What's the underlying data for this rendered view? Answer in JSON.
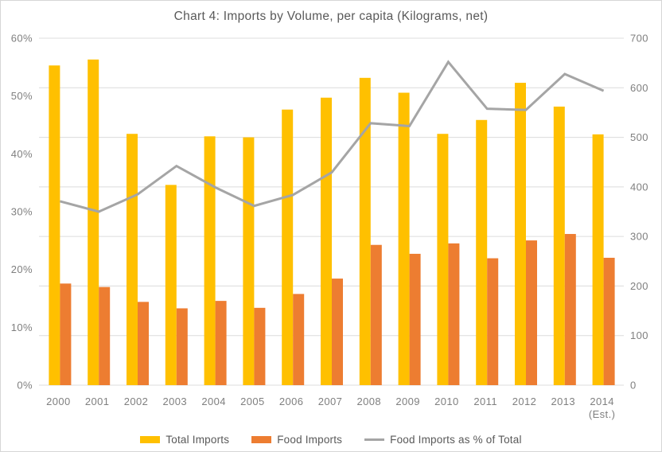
{
  "chart_data": {
    "type": "combo-bar-line",
    "title": "Chart 4: Imports by Volume, per capita (Kilograms, net)",
    "categories": [
      "2000",
      "2001",
      "2002",
      "2003",
      "2004",
      "2005",
      "2006",
      "2007",
      "2008",
      "2009",
      "2010",
      "2011",
      "2012",
      "2013",
      "2014"
    ],
    "last_category_note": "(Est.)",
    "series": [
      {
        "name": "Total Imports",
        "type": "bar",
        "axis": "right",
        "color": "#FFC000",
        "values": [
          645,
          657,
          507,
          404,
          502,
          500,
          556,
          580,
          620,
          590,
          507,
          535,
          610,
          562,
          506
        ]
      },
      {
        "name": "Food Imports",
        "type": "bar",
        "axis": "right",
        "color": "#ED7D31",
        "values": [
          205,
          198,
          168,
          155,
          170,
          156,
          184,
          215,
          283,
          265,
          286,
          256,
          292,
          305,
          257
        ]
      },
      {
        "name": "Food Imports as % of Total",
        "type": "line",
        "axis": "left",
        "color": "#A5A5A5",
        "values": [
          31.8,
          30.0,
          33.0,
          37.9,
          34.2,
          31.0,
          32.9,
          36.8,
          45.3,
          44.8,
          55.9,
          47.8,
          47.6,
          53.8,
          50.9
        ]
      }
    ],
    "left_axis": {
      "min": 0,
      "max": 60,
      "tick_step": 10,
      "tick_labels": [
        "0%",
        "10%",
        "20%",
        "30%",
        "40%",
        "50%",
        "60%"
      ]
    },
    "right_axis": {
      "min": 0,
      "max": 700,
      "tick_step": 100,
      "tick_labels": [
        "0",
        "100",
        "200",
        "300",
        "400",
        "500",
        "600",
        "700"
      ]
    },
    "gridlines": {
      "orientation": "horizontal",
      "follows": "right_axis",
      "color": "#DCDCDC"
    },
    "legend_position": "bottom",
    "colors": {
      "title_text": "#595959",
      "axis_text": "#7F7F7F",
      "legend_text": "#595959",
      "border": "#D6D6D6",
      "background": "#FFFFFF"
    }
  }
}
